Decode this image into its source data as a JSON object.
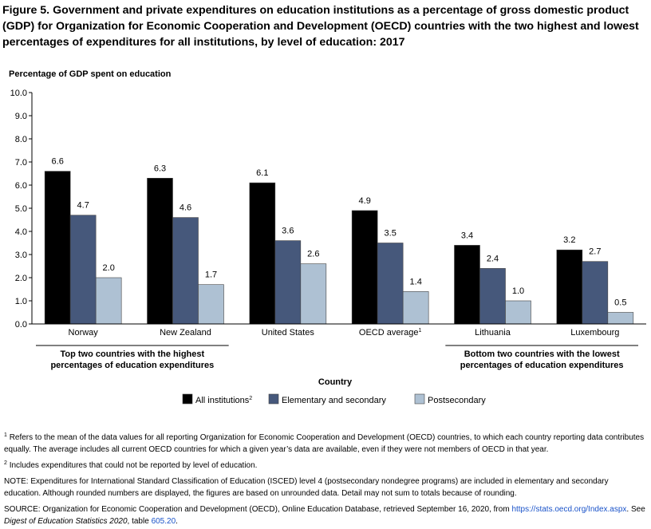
{
  "title": "Figure 5. Government and private expenditures on education institutions as a percentage of gross domestic product (GDP) for Organization for Economic Cooperation and Development (OECD) countries with the two highest and lowest percentages of expenditures for all institutions, by level of education: 2017",
  "chart_data": {
    "type": "bar",
    "ylabel": "Percentage of GDP spent on education",
    "xlabel": "Country",
    "ylim": [
      0,
      10
    ],
    "yticks": [
      "0.0",
      "1.0",
      "2.0",
      "3.0",
      "4.0",
      "5.0",
      "6.0",
      "7.0",
      "8.0",
      "9.0",
      "10.0"
    ],
    "grid": false,
    "legend_position": "bottom",
    "categories": [
      "Norway",
      "New Zealand",
      "United States",
      "OECD average",
      "Lithuania",
      "Luxembourg"
    ],
    "category_superscripts": [
      "",
      "",
      "",
      "1",
      "",
      ""
    ],
    "series": [
      {
        "name": "All institutions",
        "superscript": "2",
        "color": "#000000",
        "values": [
          6.6,
          6.3,
          6.1,
          4.9,
          3.4,
          3.2
        ],
        "labels": [
          "6.6",
          "6.3",
          "6.1",
          "4.9",
          "3.4",
          "3.2"
        ]
      },
      {
        "name": "Elementary and secondary",
        "superscript": "",
        "color": "#46587b",
        "values": [
          4.7,
          4.6,
          3.6,
          3.5,
          2.4,
          2.7
        ],
        "labels": [
          "4.7",
          "4.6",
          "3.6",
          "3.5",
          "2.4",
          "2.7"
        ]
      },
      {
        "name": "Postsecondary",
        "superscript": "",
        "color": "#aec1d3",
        "values": [
          2.0,
          1.7,
          2.6,
          1.4,
          1.0,
          0.5
        ],
        "labels": [
          "2.0",
          "1.7",
          "2.6",
          "1.4",
          "1.0",
          "0.5"
        ]
      }
    ],
    "groups": [
      {
        "line1": "Top two countries with the highest",
        "line2": "percentages of education expenditures"
      },
      {
        "line1": "Bottom two countries with the lowest",
        "line2": "percentages of education expenditures"
      }
    ]
  },
  "notes": {
    "fn1_mark": "1",
    "fn1_text": "Refers to the mean of the data values for all reporting Organization for Economic Cooperation and Development (OECD) countries, to which each country reporting data contributes equally. The average includes all current OECD countries for which a given year’s data are available, even if they were not members of OECD in that year.",
    "fn2_mark": "2",
    "fn2_text": "Includes expenditures that could not be reported by level of education.",
    "note": "NOTE: Expenditures for International Standard Classification of Education (ISCED) level 4 (postsecondary nondegree programs) are included in elementary and secondary education. Although rounded numbers are displayed, the figures are based on unrounded data. Detail may not sum to totals because of rounding.",
    "source_prefix": "SOURCE: Organization for Economic Cooperation and Development (OECD), Online Education Database, retrieved September 16, 2020, from ",
    "source_link": "https://stats.oecd.org/Index.aspx",
    "source_mid": ". See ",
    "source_digest": "Digest of Education Statistics 2020",
    "source_table_prefix": ", table ",
    "source_table": "605.20",
    "source_end": "."
  }
}
